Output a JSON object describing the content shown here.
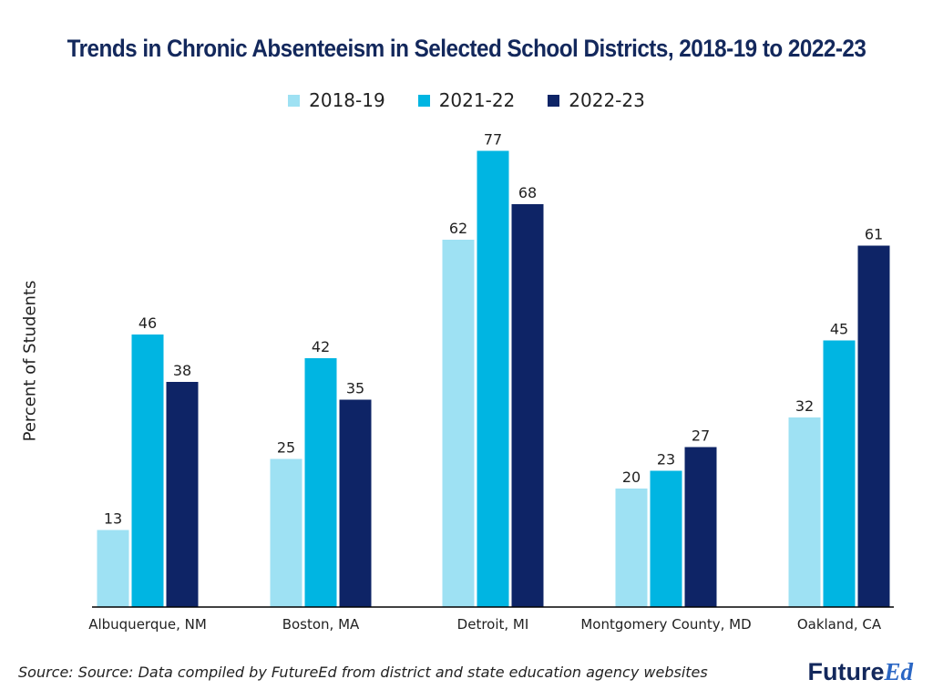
{
  "colors": {
    "series_2018": "#9ee1f3",
    "series_2021": "#00b5e2",
    "series_2022": "#0e2466",
    "title": "#13285c",
    "axis": "#000000"
  },
  "logo": {
    "future": "Future",
    "ed": "Ed"
  },
  "footer": {
    "source": "Source: Source: Data compiled by FutureEd from district and state education agency websites"
  },
  "chart_data": {
    "type": "bar",
    "title": "Trends in Chronic Absenteeism in Selected School Districts, 2018-19 to 2022-23",
    "xlabel": "",
    "ylabel": "Percent of Students",
    "ylim": [
      0,
      80
    ],
    "grid": false,
    "legend_position": "top-center",
    "categories": [
      "Albuquerque, NM",
      "Boston, MA",
      "Detroit, MI",
      "Montgomery County, MD",
      "Oakland, CA"
    ],
    "series": [
      {
        "name": "2018-19",
        "color": "#9ee1f3",
        "values": [
          13,
          25,
          62,
          20,
          32
        ]
      },
      {
        "name": "2021-22",
        "color": "#00b5e2",
        "values": [
          46,
          42,
          77,
          23,
          45
        ]
      },
      {
        "name": "2022-23",
        "color": "#0e2466",
        "values": [
          38,
          35,
          68,
          27,
          61
        ]
      }
    ]
  }
}
